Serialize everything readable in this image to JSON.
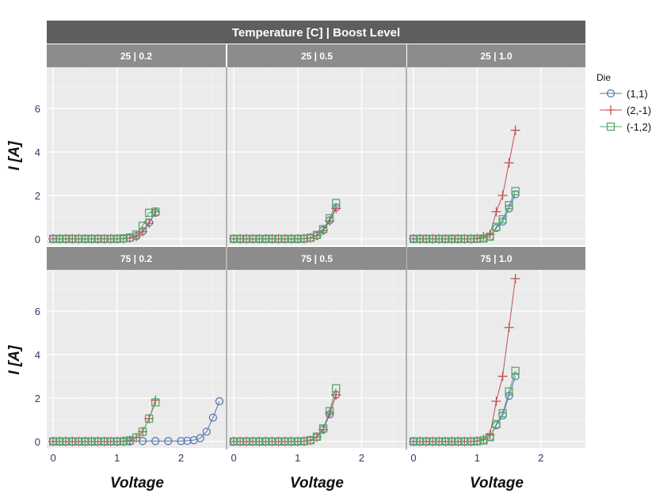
{
  "chart_data": {
    "type": "line",
    "facet_title": "Temperature [C] | Boost Level",
    "xlabel": "Voltage",
    "ylabel": "I [A]",
    "xlim": [
      -0.1,
      2.7
    ],
    "ylim": [
      -0.3,
      7.9
    ],
    "x_ticks": [
      0,
      1,
      2
    ],
    "y_ticks": [
      0,
      2,
      4,
      6
    ],
    "grid": true,
    "legend": {
      "title": "Die",
      "position": "right"
    },
    "series_styles": [
      {
        "name": "(1,1)",
        "color": "#4c72b0",
        "marker": "circle"
      },
      {
        "name": "(2,-1)",
        "color": "#c44e52",
        "marker": "plus"
      },
      {
        "name": "(-1,2)",
        "color": "#55a868",
        "marker": "square"
      }
    ],
    "panels": [
      {
        "label": "25 | 0.2",
        "series": [
          {
            "name": "(1,1)",
            "x": [
              0,
              0.1,
              0.2,
              0.3,
              0.4,
              0.5,
              0.6,
              0.7,
              0.8,
              0.9,
              1.0,
              1.1,
              1.2,
              1.3,
              1.4,
              1.5,
              1.6
            ],
            "y": [
              0,
              0,
              0,
              0,
              0,
              0,
              0,
              0,
              0,
              0,
              0,
              0.01,
              0.03,
              0.12,
              0.35,
              0.75,
              1.2
            ]
          },
          {
            "name": "(2,-1)",
            "x": [
              0,
              0.1,
              0.2,
              0.3,
              0.4,
              0.5,
              0.6,
              0.7,
              0.8,
              0.9,
              1.0,
              1.1,
              1.2,
              1.3,
              1.4,
              1.5,
              1.6
            ],
            "y": [
              0,
              0,
              0,
              0,
              0,
              0,
              0,
              0,
              0,
              0,
              0,
              0.01,
              0.04,
              0.12,
              0.33,
              0.72,
              1.25
            ]
          },
          {
            "name": "(-1,2)",
            "x": [
              0,
              0.1,
              0.2,
              0.3,
              0.4,
              0.5,
              0.6,
              0.7,
              0.8,
              0.9,
              1.0,
              1.1,
              1.2,
              1.3,
              1.4,
              1.5,
              1.6
            ],
            "y": [
              0,
              0,
              0,
              0,
              0,
              0,
              0,
              0,
              0,
              0,
              0,
              0.02,
              0.06,
              0.2,
              0.6,
              1.2,
              1.25
            ]
          }
        ]
      },
      {
        "label": "25 | 0.5",
        "series": [
          {
            "name": "(1,1)",
            "x": [
              0,
              0.1,
              0.2,
              0.3,
              0.4,
              0.5,
              0.6,
              0.7,
              0.8,
              0.9,
              1.0,
              1.1,
              1.2,
              1.3,
              1.4,
              1.5,
              1.6
            ],
            "y": [
              0,
              0,
              0,
              0,
              0,
              0,
              0,
              0,
              0,
              0,
              0,
              0.01,
              0.04,
              0.15,
              0.4,
              0.85,
              1.45
            ]
          },
          {
            "name": "(2,-1)",
            "x": [
              0,
              0.1,
              0.2,
              0.3,
              0.4,
              0.5,
              0.6,
              0.7,
              0.8,
              0.9,
              1.0,
              1.1,
              1.2,
              1.3,
              1.4,
              1.5,
              1.6
            ],
            "y": [
              0,
              0,
              0,
              0,
              0,
              0,
              0,
              0,
              0,
              0,
              0,
              0.01,
              0.04,
              0.15,
              0.38,
              0.82,
              1.4
            ]
          },
          {
            "name": "(-1,2)",
            "x": [
              0,
              0.1,
              0.2,
              0.3,
              0.4,
              0.5,
              0.6,
              0.7,
              0.8,
              0.9,
              1.0,
              1.1,
              1.2,
              1.3,
              1.4,
              1.5,
              1.6
            ],
            "y": [
              0,
              0,
              0,
              0,
              0,
              0,
              0,
              0,
              0,
              0,
              0,
              0.01,
              0.05,
              0.18,
              0.45,
              0.95,
              1.65
            ]
          }
        ]
      },
      {
        "label": "25 | 1.0",
        "series": [
          {
            "name": "(1,1)",
            "x": [
              0,
              0.1,
              0.2,
              0.3,
              0.4,
              0.5,
              0.6,
              0.7,
              0.8,
              0.9,
              1.0,
              1.1,
              1.2,
              1.3,
              1.4,
              1.5,
              1.6
            ],
            "y": [
              0,
              0,
              0,
              0,
              0,
              0,
              0,
              0,
              0,
              0,
              0,
              0.02,
              0.1,
              0.5,
              0.8,
              1.4,
              2.05
            ]
          },
          {
            "name": "(2,-1)",
            "x": [
              0,
              0.1,
              0.2,
              0.3,
              0.4,
              0.5,
              0.6,
              0.7,
              0.8,
              0.9,
              1.0,
              1.1,
              1.2,
              1.3,
              1.4,
              1.5,
              1.6
            ],
            "y": [
              0,
              0,
              0,
              0,
              0,
              0,
              0,
              0,
              0,
              0,
              0.02,
              0.1,
              0.2,
              1.25,
              2.0,
              3.5,
              5.0
            ]
          },
          {
            "name": "(-1,2)",
            "x": [
              0,
              0.1,
              0.2,
              0.3,
              0.4,
              0.5,
              0.6,
              0.7,
              0.8,
              0.9,
              1.0,
              1.1,
              1.2,
              1.3,
              1.4,
              1.5,
              1.6
            ],
            "y": [
              0,
              0,
              0,
              0,
              0,
              0,
              0,
              0,
              0,
              0,
              0,
              0.02,
              0.1,
              0.55,
              0.9,
              1.55,
              2.2
            ]
          }
        ]
      },
      {
        "label": "75 | 0.2",
        "series": [
          {
            "name": "(1,1)",
            "x": [
              0,
              0.1,
              0.2,
              0.3,
              0.4,
              0.5,
              0.6,
              0.7,
              0.8,
              0.9,
              1.0,
              1.1,
              1.2,
              1.4,
              1.6,
              1.8,
              2.0,
              2.1,
              2.2,
              2.3,
              2.4,
              2.5,
              2.6
            ],
            "y": [
              0,
              0,
              0,
              0,
              0,
              0,
              0,
              0,
              0,
              0,
              0,
              0,
              0,
              0.02,
              0.02,
              0.02,
              0.02,
              0.03,
              0.06,
              0.15,
              0.45,
              1.1,
              1.85
            ]
          },
          {
            "name": "(2,-1)",
            "x": [
              0,
              0.1,
              0.2,
              0.3,
              0.4,
              0.5,
              0.6,
              0.7,
              0.8,
              0.9,
              1.0,
              1.1,
              1.2,
              1.3,
              1.4,
              1.5,
              1.6
            ],
            "y": [
              0,
              0,
              0,
              0,
              0,
              0,
              0,
              0,
              0,
              0,
              0,
              0.01,
              0.05,
              0.18,
              0.45,
              1.05,
              1.9
            ]
          },
          {
            "name": "(-1,2)",
            "x": [
              0,
              0.1,
              0.2,
              0.3,
              0.4,
              0.5,
              0.6,
              0.7,
              0.8,
              0.9,
              1.0,
              1.1,
              1.2,
              1.3,
              1.4,
              1.5,
              1.6
            ],
            "y": [
              0,
              0,
              0,
              0,
              0,
              0,
              0,
              0,
              0,
              0,
              0,
              0.01,
              0.05,
              0.18,
              0.45,
              1.05,
              1.8
            ]
          }
        ]
      },
      {
        "label": "75 | 0.5",
        "series": [
          {
            "name": "(1,1)",
            "x": [
              0,
              0.1,
              0.2,
              0.3,
              0.4,
              0.5,
              0.6,
              0.7,
              0.8,
              0.9,
              1.0,
              1.1,
              1.2,
              1.3,
              1.4,
              1.5,
              1.6
            ],
            "y": [
              0,
              0,
              0,
              0,
              0,
              0,
              0,
              0,
              0,
              0,
              0,
              0.01,
              0.05,
              0.2,
              0.55,
              1.25,
              2.15
            ]
          },
          {
            "name": "(2,-1)",
            "x": [
              0,
              0.1,
              0.2,
              0.3,
              0.4,
              0.5,
              0.6,
              0.7,
              0.8,
              0.9,
              1.0,
              1.1,
              1.2,
              1.3,
              1.4,
              1.5,
              1.6
            ],
            "y": [
              0,
              0,
              0,
              0,
              0,
              0,
              0,
              0,
              0,
              0,
              0,
              0.01,
              0.05,
              0.2,
              0.55,
              1.3,
              2.15
            ]
          },
          {
            "name": "(-1,2)",
            "x": [
              0,
              0.1,
              0.2,
              0.3,
              0.4,
              0.5,
              0.6,
              0.7,
              0.8,
              0.9,
              1.0,
              1.1,
              1.2,
              1.3,
              1.4,
              1.5,
              1.6
            ],
            "y": [
              0,
              0,
              0,
              0,
              0,
              0,
              0,
              0,
              0,
              0,
              0,
              0.01,
              0.06,
              0.22,
              0.6,
              1.4,
              2.45
            ]
          }
        ]
      },
      {
        "label": "75 | 1.0",
        "series": [
          {
            "name": "(1,1)",
            "x": [
              0,
              0.1,
              0.2,
              0.3,
              0.4,
              0.5,
              0.6,
              0.7,
              0.8,
              0.9,
              1.0,
              1.1,
              1.2,
              1.3,
              1.4,
              1.5,
              1.6
            ],
            "y": [
              0,
              0,
              0,
              0,
              0,
              0,
              0,
              0,
              0,
              0,
              0.01,
              0.05,
              0.2,
              0.75,
              1.2,
              2.1,
              3.0
            ]
          },
          {
            "name": "(2,-1)",
            "x": [
              0,
              0.1,
              0.2,
              0.3,
              0.4,
              0.5,
              0.6,
              0.7,
              0.8,
              0.9,
              1.0,
              1.1,
              1.2,
              1.3,
              1.4,
              1.5,
              1.6
            ],
            "y": [
              0,
              0,
              0,
              0,
              0,
              0,
              0,
              0,
              0,
              0,
              0.02,
              0.1,
              0.3,
              1.85,
              3.0,
              5.25,
              7.5
            ]
          },
          {
            "name": "(-1,2)",
            "x": [
              0,
              0.1,
              0.2,
              0.3,
              0.4,
              0.5,
              0.6,
              0.7,
              0.8,
              0.9,
              1.0,
              1.1,
              1.2,
              1.3,
              1.4,
              1.5,
              1.6
            ],
            "y": [
              0,
              0,
              0,
              0,
              0,
              0,
              0,
              0,
              0,
              0,
              0.01,
              0.05,
              0.2,
              0.8,
              1.3,
              2.3,
              3.25
            ]
          }
        ]
      }
    ]
  }
}
